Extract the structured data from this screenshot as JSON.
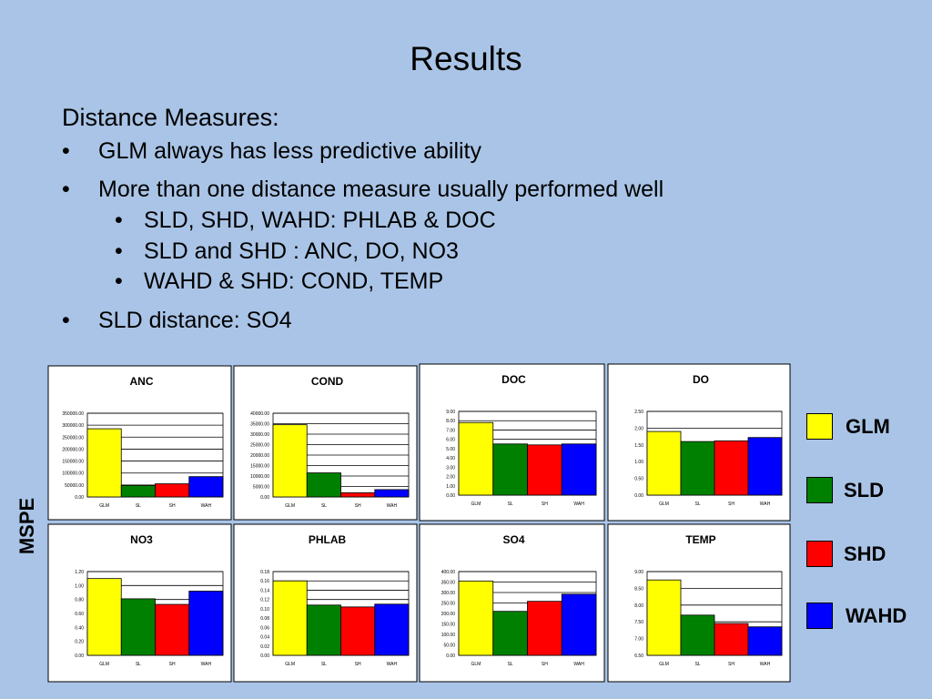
{
  "slide": {
    "title": "Results",
    "heading": "Distance Measures:",
    "bullets": [
      {
        "text": "GLM always has less predictive ability",
        "level": 1
      },
      {
        "text": "More than one distance measure usually performed well",
        "level": 1
      },
      {
        "text": "SLD, SHD, WAHD: PHLAB & DOC",
        "level": 2
      },
      {
        "text": "SLD and SHD : ANC, DO, NO3",
        "level": 2
      },
      {
        "text": "WAHD & SHD: COND, TEMP",
        "level": 2
      },
      {
        "text": "SLD distance: SO4",
        "level": 1
      }
    ],
    "bullet_char": "•",
    "ylabel": "MSPE"
  },
  "legend": [
    {
      "label": "GLM",
      "color": "#ffff00"
    },
    {
      "label": "SLD",
      "color": "#008000"
    },
    {
      "label": "SHD",
      "color": "#ff0000"
    },
    {
      "label": "WAHD",
      "color": "#0000ff"
    }
  ],
  "chart_data": [
    {
      "type": "bar",
      "title": "ANC",
      "categories": [
        "GLM",
        "SL",
        "SH",
        "WAH"
      ],
      "values": [
        285000,
        48000,
        55000,
        85000
      ],
      "ylim": [
        0,
        350000
      ],
      "ystep": 50000,
      "yticks": [
        "0.00",
        "50000.00",
        "100000.00",
        "150000.00",
        "200000.00",
        "250000.00",
        "300000.00",
        "350000.00"
      ],
      "colors": [
        "#ffff00",
        "#008000",
        "#ff0000",
        "#0000ff"
      ],
      "grid": true
    },
    {
      "type": "bar",
      "title": "COND",
      "categories": [
        "GLM",
        "SL",
        "SH",
        "WAH"
      ],
      "values": [
        34500,
        11500,
        2000,
        3500
      ],
      "ylim": [
        0,
        40000
      ],
      "ystep": 5000,
      "yticks": [
        "0.00",
        "5000.00",
        "10000.00",
        "15000.00",
        "20000.00",
        "25000.00",
        "30000.00",
        "35000.00",
        "40000.00"
      ],
      "colors": [
        "#ffff00",
        "#008000",
        "#ff0000",
        "#0000ff"
      ],
      "grid": true
    },
    {
      "type": "bar",
      "title": "DOC",
      "categories": [
        "GLM",
        "SL",
        "SH",
        "WAH"
      ],
      "values": [
        7.8,
        5.5,
        5.4,
        5.5
      ],
      "ylim": [
        0,
        9
      ],
      "ystep": 1,
      "yticks": [
        "0.00",
        "1.00",
        "2.00",
        "3.00",
        "4.00",
        "5.00",
        "6.00",
        "7.00",
        "8.00",
        "9.00"
      ],
      "colors": [
        "#ffff00",
        "#008000",
        "#ff0000",
        "#0000ff"
      ],
      "grid": true
    },
    {
      "type": "bar",
      "title": "DO",
      "categories": [
        "GLM",
        "SL",
        "SH",
        "WAH"
      ],
      "values": [
        1.9,
        1.6,
        1.62,
        1.72
      ],
      "ylim": [
        0,
        2.5
      ],
      "ystep": 0.5,
      "yticks": [
        "0.00",
        "0.50",
        "1.00",
        "1.50",
        "2.00",
        "2.50"
      ],
      "colors": [
        "#ffff00",
        "#008000",
        "#ff0000",
        "#0000ff"
      ],
      "grid": true
    },
    {
      "type": "bar",
      "title": "NO3",
      "categories": [
        "GLM",
        "SL",
        "SH",
        "WAH"
      ],
      "values": [
        1.1,
        0.81,
        0.73,
        0.92
      ],
      "ylim": [
        0,
        1.2
      ],
      "ystep": 0.2,
      "yticks": [
        "0.00",
        "0.20",
        "0.40",
        "0.60",
        "0.80",
        "1.00",
        "1.20"
      ],
      "colors": [
        "#ffff00",
        "#008000",
        "#ff0000",
        "#0000ff"
      ],
      "grid": true
    },
    {
      "type": "bar",
      "title": "PHLAB",
      "categories": [
        "GLM",
        "SL",
        "SH",
        "WAH"
      ],
      "values": [
        0.16,
        0.108,
        0.104,
        0.11
      ],
      "ylim": [
        0,
        0.18
      ],
      "ystep": 0.02,
      "yticks": [
        "0.00",
        "0.02",
        "0.04",
        "0.06",
        "0.08",
        "0.10",
        "0.12",
        "0.14",
        "0.16",
        "0.18"
      ],
      "colors": [
        "#ffff00",
        "#008000",
        "#ff0000",
        "#0000ff"
      ],
      "grid": true
    },
    {
      "type": "bar",
      "title": "SO4",
      "categories": [
        "GLM",
        "SL",
        "SH",
        "WAH"
      ],
      "values": [
        355,
        210,
        258,
        292
      ],
      "ylim": [
        0,
        400
      ],
      "ystep": 50,
      "yticks": [
        "0.00",
        "50.00",
        "100.00",
        "150.00",
        "200.00",
        "250.00",
        "300.00",
        "350.00",
        "400.00"
      ],
      "colors": [
        "#ffff00",
        "#008000",
        "#ff0000",
        "#0000ff"
      ],
      "grid": true
    },
    {
      "type": "bar",
      "title": "TEMP",
      "categories": [
        "GLM",
        "SL",
        "SH",
        "WAH"
      ],
      "values": [
        8.75,
        7.7,
        7.45,
        7.35
      ],
      "ylim": [
        6.5,
        9
      ],
      "ystep": 0.5,
      "yticks": [
        "6.50",
        "7.00",
        "7.50",
        "8.00",
        "8.50",
        "9.00"
      ],
      "colors": [
        "#ffff00",
        "#008000",
        "#ff0000",
        "#0000ff"
      ],
      "grid": true
    }
  ]
}
